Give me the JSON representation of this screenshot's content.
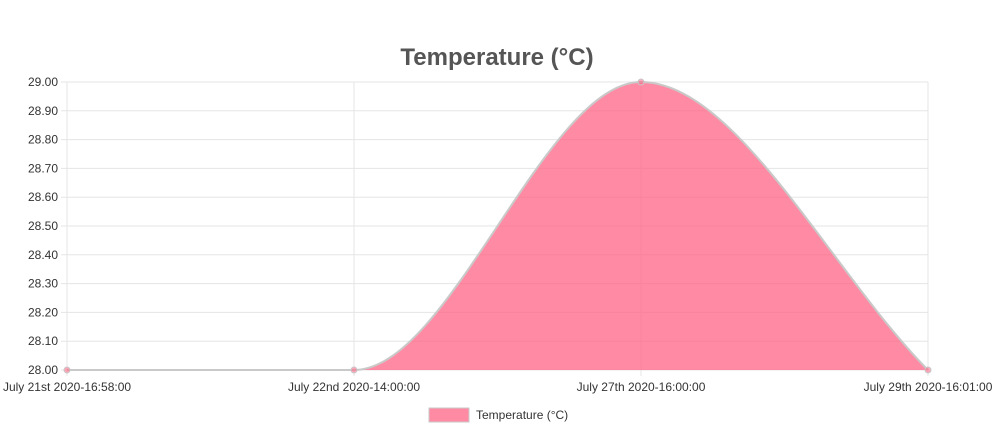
{
  "chart_data": {
    "type": "area",
    "title": "Temperature (°C)",
    "xlabel": "",
    "ylabel": "",
    "x": [
      "July 21st 2020-16:58:00",
      "July 22nd 2020-14:00:00",
      "July 27th 2020-16:00:00",
      "July 29th 2020-16:01:00"
    ],
    "series": [
      {
        "name": "Temperature (°C)",
        "values": [
          28.0,
          28.0,
          29.0,
          28.0
        ]
      }
    ],
    "ylim": [
      28.0,
      29.0
    ],
    "yticks": [
      "29.00",
      "28.90",
      "28.80",
      "28.70",
      "28.60",
      "28.50",
      "28.40",
      "28.30",
      "28.20",
      "28.10",
      "28.00"
    ],
    "grid": true,
    "legend": "bottom",
    "colors": {
      "fill": "#ff6384",
      "line": "#c9c9c9",
      "grid": "#e5e5e5"
    }
  }
}
